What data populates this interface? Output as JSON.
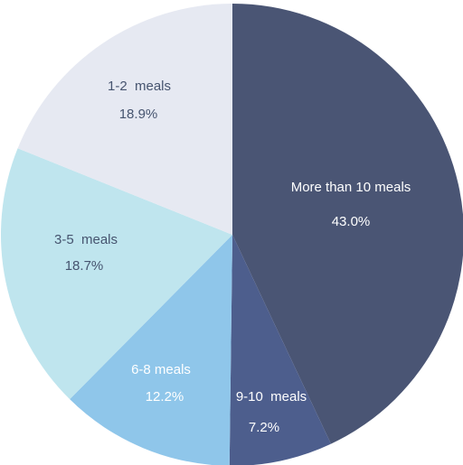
{
  "chart_data": {
    "type": "pie",
    "title": "",
    "start_angle_deg": 0,
    "direction": "clockwise",
    "slices": [
      {
        "label": "More than 10 meals",
        "value": 43.0,
        "value_label": "43.0%",
        "color": "#4a5574",
        "text_color": "#ffffff"
      },
      {
        "label": "9-10  meals",
        "value": 7.2,
        "value_label": "7.2%",
        "color": "#4d5e8d",
        "text_color": "#ffffff"
      },
      {
        "label": "6-8 meals",
        "value": 12.2,
        "value_label": "12.2%",
        "color": "#8fc6ea",
        "text_color": "#ffffff"
      },
      {
        "label": "3-5  meals",
        "value": 18.7,
        "value_label": "18.7%",
        "color": "#bfe5ee",
        "text_color": "#46546f"
      },
      {
        "label": "1-2  meals",
        "value": 18.9,
        "value_label": "18.9%",
        "color": "#e6e9f2",
        "text_color": "#46546f"
      }
    ]
  }
}
